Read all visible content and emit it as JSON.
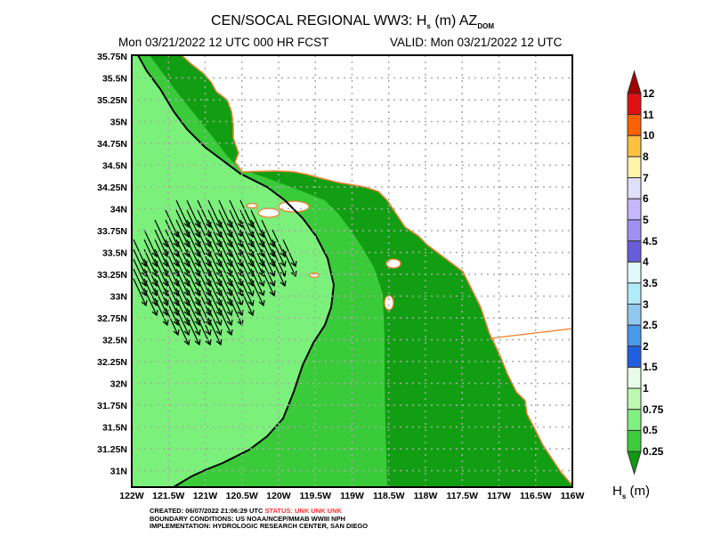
{
  "header": {
    "title_main": "CEN/SOCAL REGIONAL WW3: H",
    "title_sub_s": "s",
    "title_units": " (m) AZ",
    "title_sub_dom": "DOM",
    "forecast": "Mon 03/21/2022 12 UTC 000 HR FCST",
    "valid": "VALID: Mon 03/21/2022 12 UTC"
  },
  "map": {
    "lat_labels": [
      "35.75N",
      "35.5N",
      "35.25N",
      "35N",
      "34.75N",
      "34.5N",
      "34.25N",
      "34N",
      "33.75N",
      "33.5N",
      "33.25N",
      "33N",
      "32.75N",
      "32.5N",
      "32.25N",
      "32N",
      "31.75N",
      "31.5N",
      "31.25N",
      "31N"
    ],
    "lon_labels": [
      "122W",
      "121.5W",
      "121W",
      "120.5W",
      "120W",
      "119.5W",
      "119W",
      "118.5W",
      "118W",
      "117.5W",
      "117W",
      "116.5W",
      "116W"
    ],
    "colors": {
      "light": "#7bf07b",
      "mid": "#3acb3a",
      "dark": "#129e12",
      "coast": "#f08030",
      "grid": "#aaaaaa"
    }
  },
  "colorbar": {
    "labels": [
      "12",
      "11",
      "10",
      "8",
      "7",
      "6",
      "5",
      "4.5",
      "4",
      "3.5",
      "3",
      "2.5",
      "2",
      "1.5",
      "1",
      "0.75",
      "0.5",
      "0.25"
    ],
    "colors": [
      "#a00000",
      "#e01010",
      "#ff6000",
      "#ffc040",
      "#fff4a8",
      "#e0e0fa",
      "#c4b8fa",
      "#a090f4",
      "#6a5cd8",
      "#e0fafa",
      "#b0ecf8",
      "#90c8f0",
      "#4898ec",
      "#2060e0",
      "#e6fce6",
      "#bef8b0",
      "#80f080",
      "#3ccc3c",
      "#109a10"
    ],
    "title_main": "H",
    "title_sub": "s",
    "title_units": " (m)"
  },
  "footer": {
    "created": "CREATED: 06/07/2022 21:06:29 UTC",
    "status": "STATUS: UNK UNK UNK",
    "boundary": "BOUNDARY CONDITIONS: US NOAA/NCEP/MMAB WWIII NPH",
    "implementation": "IMPLEMENTATION: HYDROLOGIC RESEARCH CENTER, SAN DIEGO"
  }
}
